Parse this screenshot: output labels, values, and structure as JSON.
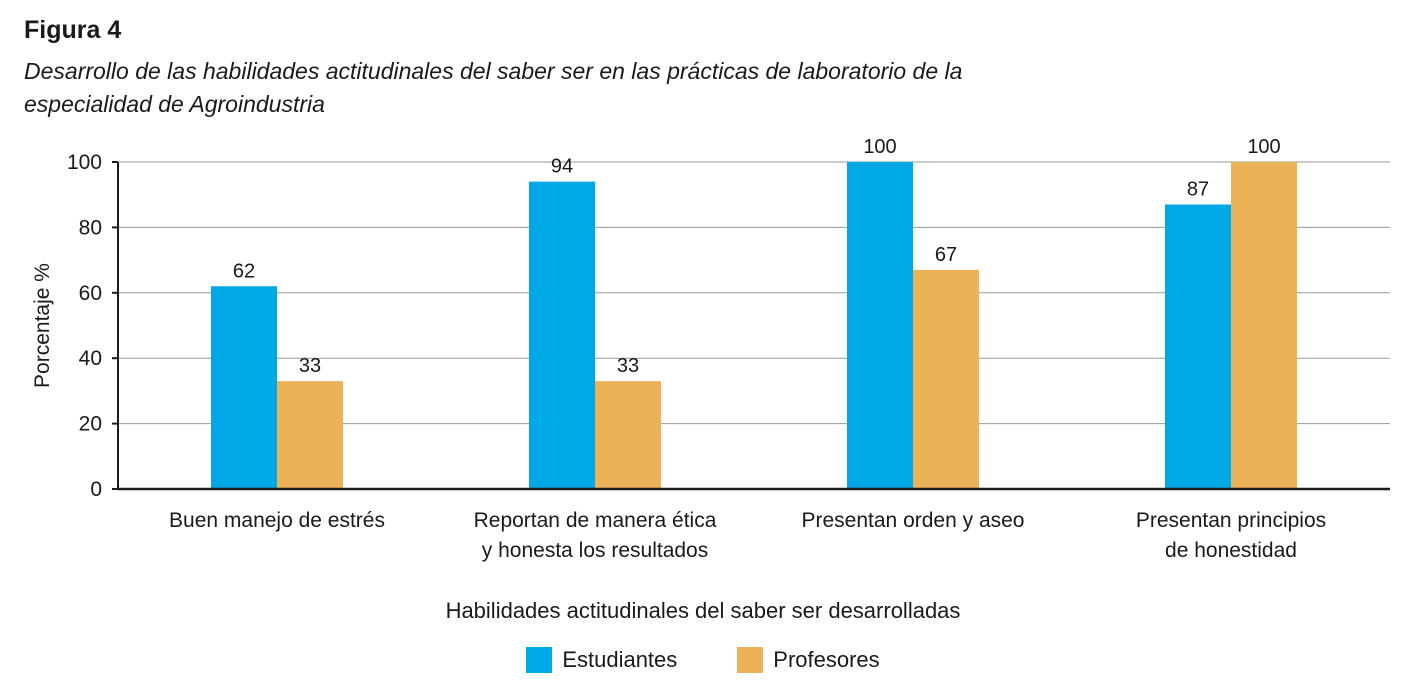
{
  "figure": {
    "label": "Figura 4",
    "title": "Desarrollo de las habilidades actitudinales del saber ser en las prácticas de laboratorio de la especialidad de Agroindustria"
  },
  "chart_data": {
    "type": "bar",
    "categories": [
      [
        "Buen manejo de estrés"
      ],
      [
        "Reportan de manera ética",
        "y honesta los resultados"
      ],
      [
        "Presentan orden y aseo"
      ],
      [
        "Presentan principios",
        "de honestidad"
      ]
    ],
    "series": [
      {
        "name": "Estudiantes",
        "color": "#00a8e6",
        "values": [
          62,
          94,
          100,
          87
        ]
      },
      {
        "name": "Profesores",
        "color": "#ecb257",
        "values": [
          33,
          33,
          67,
          100
        ]
      }
    ],
    "xlabel": "Habilidades actitudinales del saber ser desarrolladas",
    "ylabel": "Porcentaje %",
    "ylim": [
      0,
      100
    ],
    "yticks": [
      0,
      20,
      40,
      60,
      80,
      100
    ],
    "grid": true,
    "legend": "bottom-center"
  }
}
